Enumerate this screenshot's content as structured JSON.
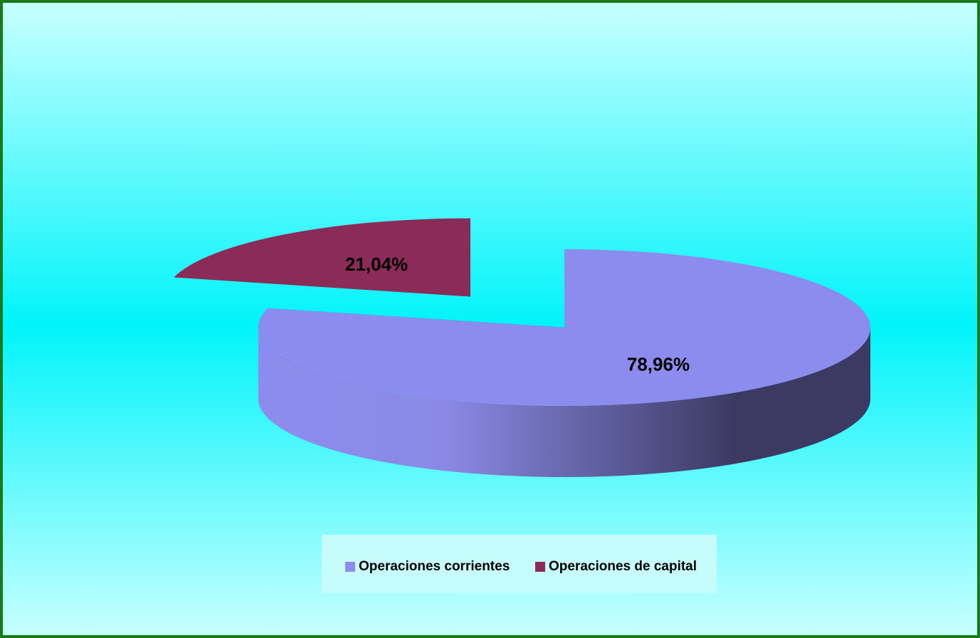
{
  "chart_data": {
    "type": "pie",
    "categories": [
      "Operaciones corrientes",
      "Operaciones de capital"
    ],
    "values": [
      78.96,
      21.04
    ],
    "value_labels": [
      "78,96%",
      "21,04%"
    ],
    "colors": [
      "#8c8cee",
      "#8b2b57"
    ],
    "legend": "bottom"
  }
}
